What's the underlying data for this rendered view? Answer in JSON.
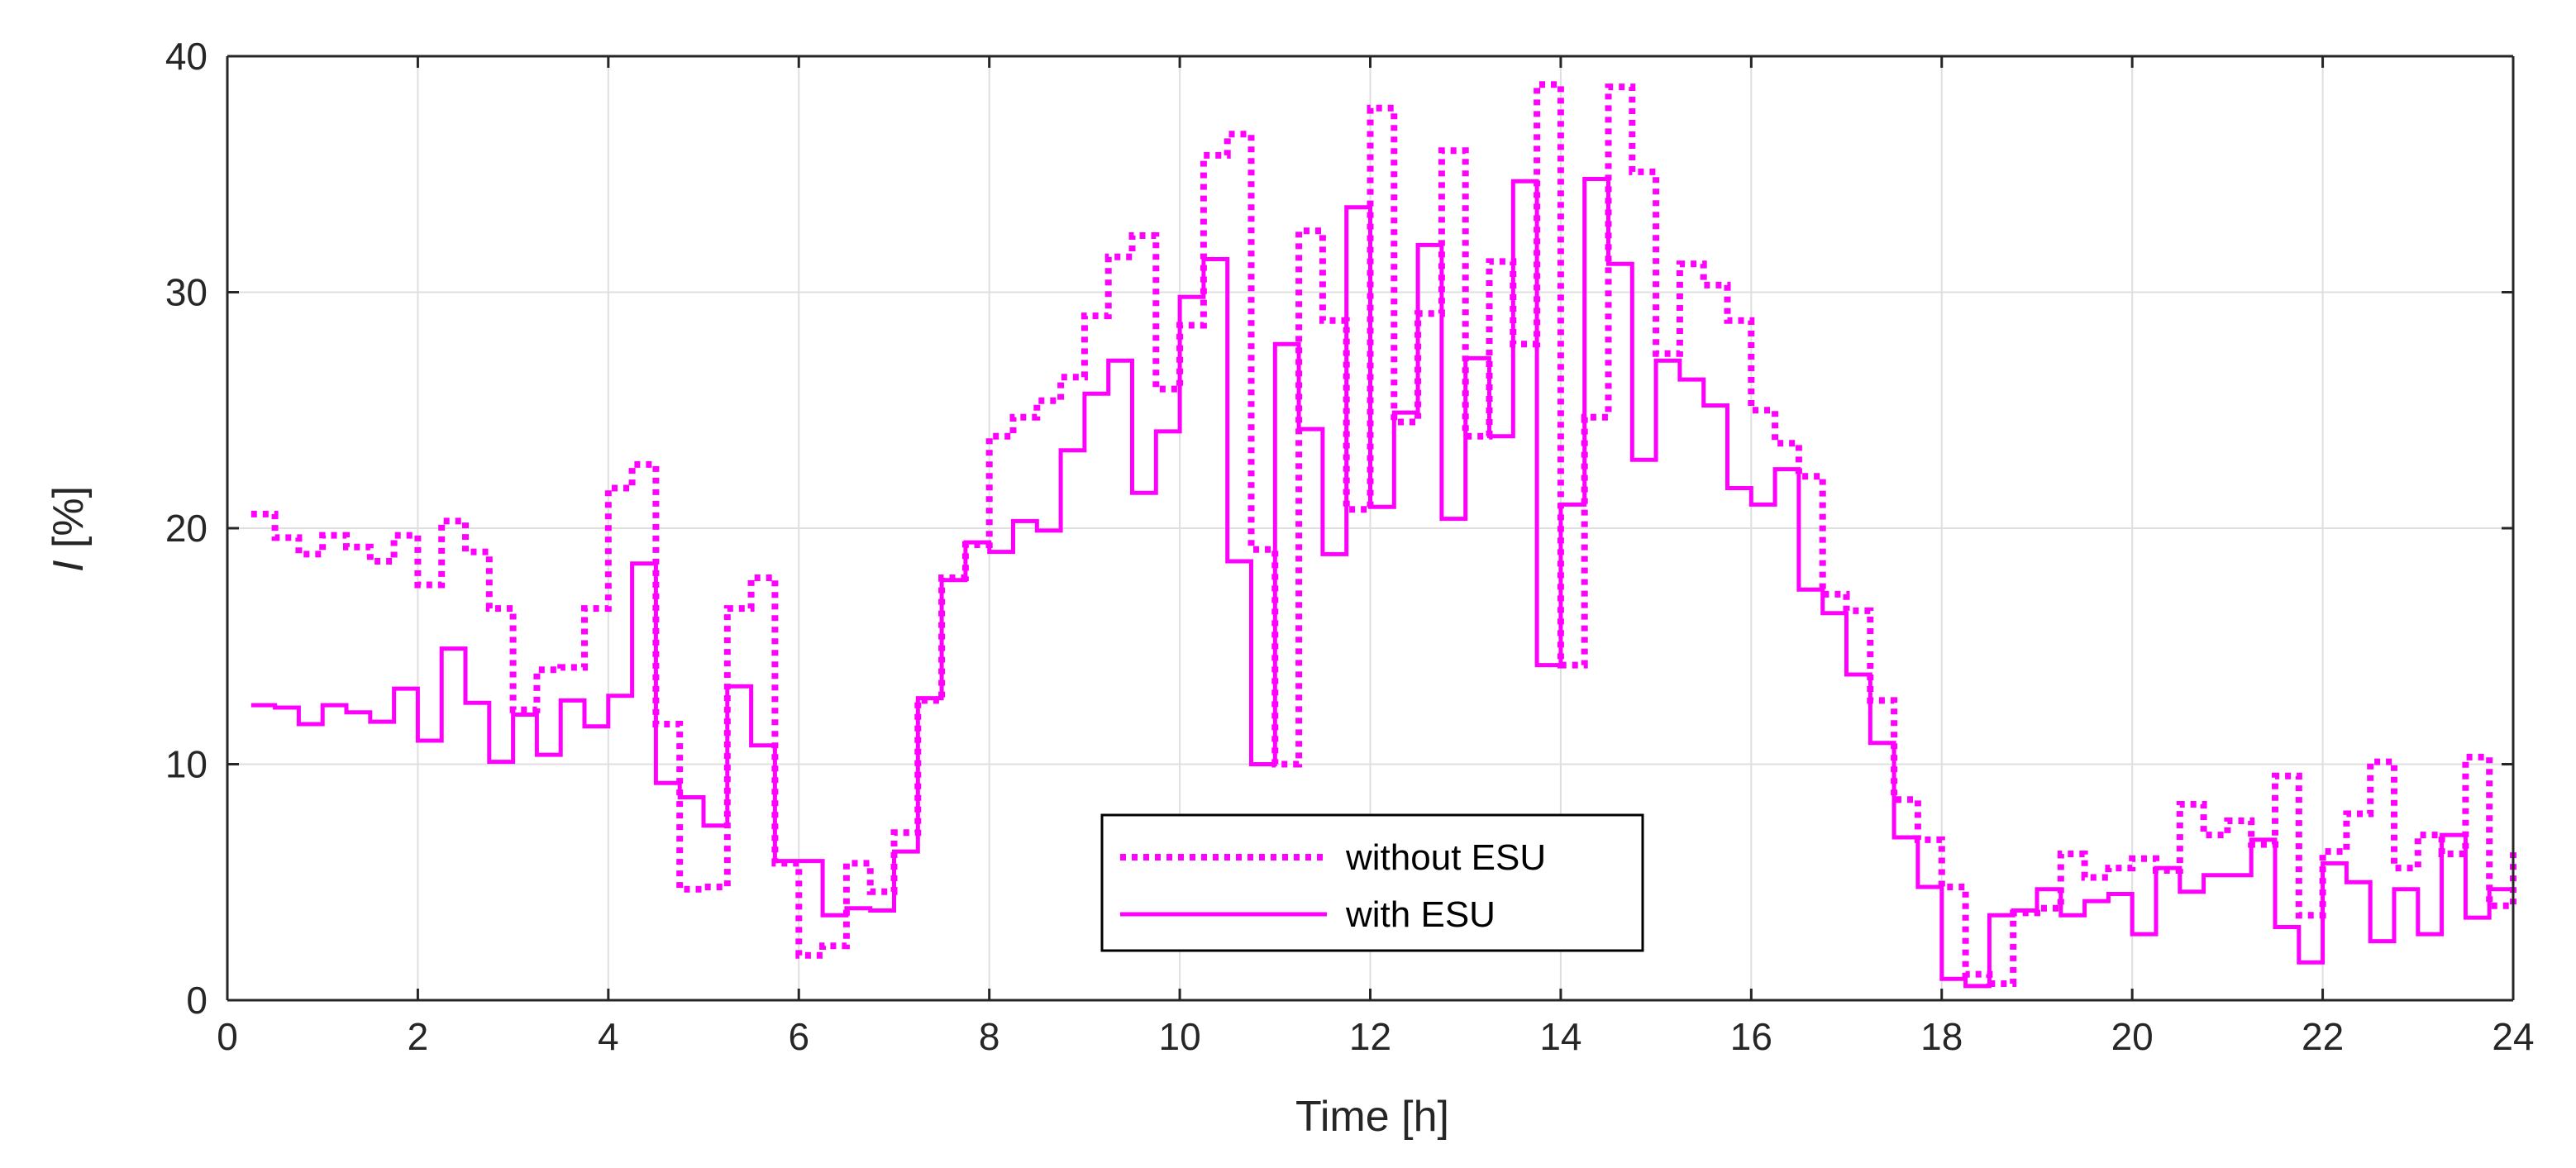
{
  "chart_data": {
    "type": "line",
    "step": true,
    "xlabel": "Time [h]",
    "ylabel_italic": "I",
    "ylabel_rest": " [%]",
    "xlim": [
      0,
      24
    ],
    "ylim": [
      0,
      40
    ],
    "xticks": [
      0,
      2,
      4,
      6,
      8,
      10,
      12,
      14,
      16,
      18,
      20,
      22,
      24
    ],
    "yticks": [
      0,
      10,
      20,
      30,
      40
    ],
    "grid": true,
    "legend_position": "bottom-center",
    "colors": {
      "series": "#ff00ff",
      "grid": "#dfdfdf",
      "axis": "#262626"
    },
    "series": [
      {
        "name": "without ESU",
        "style": "dotted",
        "x": [
          0.25,
          0.5,
          0.75,
          1.0,
          1.25,
          1.5,
          1.75,
          2.0,
          2.25,
          2.5,
          2.75,
          3.0,
          3.25,
          3.5,
          3.75,
          4.0,
          4.25,
          4.5,
          4.75,
          5.0,
          5.25,
          5.5,
          5.75,
          6.0,
          6.25,
          6.5,
          6.75,
          7.0,
          7.25,
          7.5,
          7.75,
          8.0,
          8.25,
          8.5,
          8.75,
          9.0,
          9.25,
          9.5,
          9.75,
          10.0,
          10.25,
          10.5,
          10.75,
          11.0,
          11.25,
          11.5,
          11.75,
          12.0,
          12.25,
          12.5,
          12.75,
          13.0,
          13.25,
          13.5,
          13.75,
          14.0,
          14.25,
          14.5,
          14.75,
          15.0,
          15.25,
          15.5,
          15.75,
          16.0,
          16.25,
          16.5,
          16.75,
          17.0,
          17.25,
          17.5,
          17.75,
          18.0,
          18.25,
          18.5,
          18.75,
          19.0,
          19.25,
          19.5,
          19.75,
          20.0,
          20.25,
          20.5,
          20.75,
          21.0,
          21.25,
          21.5,
          21.75,
          22.0,
          22.25,
          22.5,
          22.75,
          23.0,
          23.25,
          23.5,
          23.75,
          24.0
        ],
        "y": [
          20.6,
          19.6,
          18.9,
          19.7,
          19.2,
          18.6,
          19.7,
          17.6,
          20.3,
          19.0,
          16.6,
          12.3,
          14.0,
          14.1,
          16.6,
          21.7,
          22.7,
          11.7,
          4.7,
          4.8,
          16.6,
          17.9,
          5.8,
          1.9,
          2.3,
          5.8,
          4.6,
          7.1,
          12.7,
          17.9,
          19.3,
          23.9,
          24.7,
          25.4,
          26.4,
          29.0,
          31.5,
          32.4,
          25.9,
          28.6,
          35.8,
          36.7,
          19.1,
          10.0,
          32.6,
          28.8,
          20.8,
          37.8,
          24.5,
          29.1,
          36.0,
          23.9,
          31.3,
          27.8,
          38.8,
          14.2,
          24.7,
          38.7,
          35.1,
          27.4,
          31.2,
          30.3,
          28.8,
          25.0,
          23.6,
          22.2,
          17.2,
          16.5,
          12.7,
          8.5,
          6.8,
          4.8,
          1.1,
          0.7,
          3.7,
          3.9,
          6.2,
          5.2,
          5.6,
          6.0,
          5.5,
          8.3,
          7.0,
          7.6,
          6.6,
          9.5,
          3.6,
          6.3,
          7.9,
          10.1,
          5.6,
          7.0,
          6.2,
          10.3,
          4.0,
          6.3
        ]
      },
      {
        "name": "with ESU",
        "style": "solid",
        "x": [
          0.25,
          0.5,
          0.75,
          1.0,
          1.25,
          1.5,
          1.75,
          2.0,
          2.25,
          2.5,
          2.75,
          3.0,
          3.25,
          3.5,
          3.75,
          4.0,
          4.25,
          4.5,
          4.75,
          5.0,
          5.25,
          5.5,
          5.75,
          6.0,
          6.25,
          6.5,
          6.75,
          7.0,
          7.25,
          7.5,
          7.75,
          8.0,
          8.25,
          8.5,
          8.75,
          9.0,
          9.25,
          9.5,
          9.75,
          10.0,
          10.25,
          10.5,
          10.75,
          11.0,
          11.25,
          11.5,
          11.75,
          12.0,
          12.25,
          12.5,
          12.75,
          13.0,
          13.25,
          13.5,
          13.75,
          14.0,
          14.25,
          14.5,
          14.75,
          15.0,
          15.25,
          15.5,
          15.75,
          16.0,
          16.25,
          16.5,
          16.75,
          17.0,
          17.25,
          17.5,
          17.75,
          18.0,
          18.25,
          18.5,
          18.75,
          19.0,
          19.25,
          19.5,
          19.75,
          20.0,
          20.25,
          20.5,
          20.75,
          21.0,
          21.25,
          21.5,
          21.75,
          22.0,
          22.25,
          22.5,
          22.75,
          23.0,
          23.25,
          23.5,
          23.75,
          24.0
        ],
        "y": [
          12.5,
          12.4,
          11.7,
          12.5,
          12.2,
          11.8,
          13.2,
          11.0,
          14.9,
          12.6,
          10.1,
          12.1,
          10.4,
          12.7,
          11.6,
          12.9,
          18.5,
          9.2,
          8.6,
          7.4,
          13.3,
          10.8,
          5.9,
          5.9,
          3.6,
          3.9,
          3.8,
          6.3,
          12.8,
          17.8,
          19.4,
          19.0,
          20.3,
          19.9,
          23.3,
          25.7,
          27.1,
          21.5,
          24.1,
          29.8,
          31.4,
          18.6,
          10.0,
          27.8,
          24.2,
          18.9,
          33.6,
          20.9,
          24.9,
          32.0,
          20.4,
          27.2,
          23.9,
          34.7,
          14.2,
          21.0,
          34.8,
          31.2,
          22.9,
          27.1,
          26.3,
          25.2,
          21.7,
          21.0,
          22.5,
          17.4,
          16.4,
          13.8,
          10.9,
          6.9,
          4.8,
          0.9,
          0.6,
          3.6,
          3.8,
          4.7,
          3.6,
          4.2,
          4.5,
          2.8,
          5.6,
          4.6,
          5.3,
          5.3,
          6.8,
          3.1,
          1.6,
          5.8,
          5.0,
          2.5,
          4.7,
          2.8,
          7.0,
          3.5,
          4.7,
          4.7
        ]
      }
    ]
  }
}
